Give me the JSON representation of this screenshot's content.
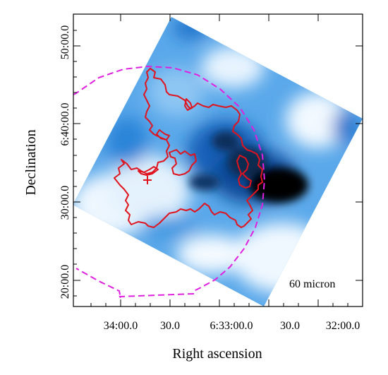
{
  "figure": {
    "xlabel": "Right ascension",
    "ylabel": "Declination",
    "band_label": "60 micron",
    "x_tick_labels": [
      "34:00.0",
      "30.0",
      "6:33:00.0",
      "30.0",
      "32:00.0"
    ],
    "y_tick_labels": [
      "50:00.0",
      "6:40:00.0",
      "30:00.0",
      "20:00.0"
    ]
  },
  "colors": {
    "contour": "#e0141e",
    "boundary": "#e020e0",
    "marker": "#e0141e",
    "map_dark": "#000000",
    "map_mid": "#1a78d0",
    "map_light": "#d8ecfa",
    "frame": "#000000"
  },
  "markers": [
    {
      "name": "source-marker",
      "symbol": "+"
    }
  ]
}
